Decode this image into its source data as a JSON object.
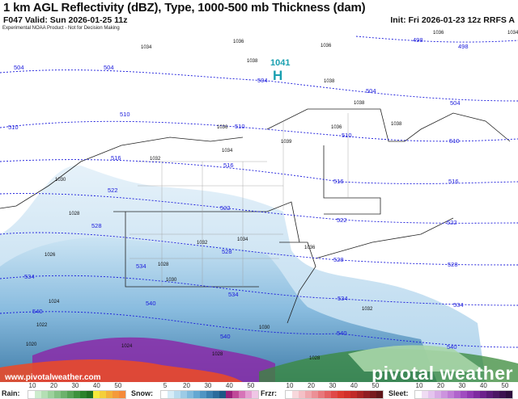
{
  "header": {
    "title": "1 km AGL Reflectivity (dBZ), Type, 1000-500 mb Thickness (dam)",
    "valid": "F047 Valid: Sun 2026-01-25 11z",
    "init": "Init: Fri 2026-01-23 12z RRFS A"
  },
  "map": {
    "disclaimer": "Experimental NOAA Product - Not for Decision Making",
    "website": "www.pivotalweather.com",
    "brand": "pivotal weather",
    "high_center": {
      "value": "1041",
      "symbol": "H"
    },
    "thickness_labels": [
      "498",
      "498",
      "504",
      "504",
      "504",
      "504",
      "504",
      "510",
      "510",
      "510",
      "510",
      "510",
      "516",
      "516",
      "516",
      "516",
      "522",
      "522",
      "522",
      "522",
      "528",
      "528",
      "528",
      "528",
      "534",
      "534",
      "534",
      "534",
      "534",
      "540",
      "540",
      "540",
      "540",
      "540"
    ],
    "pressure_labels": [
      "1034",
      "1036",
      "1038",
      "1036",
      "1038",
      "1038",
      "1036",
      "1036",
      "1039",
      "1038",
      "1034",
      "1032",
      "1030",
      "1028",
      "1032",
      "1034",
      "1026",
      "1028",
      "1030",
      "1036",
      "1024",
      "1022",
      "1030",
      "1032",
      "1036",
      "1034",
      "1028",
      "1020",
      "1024",
      "1028"
    ],
    "colors": {
      "thickness": "#1a1adb",
      "snow": "#5b9bc8",
      "rain": "#3a8a3a",
      "frzr": "#e84a2a",
      "sleet": "#8a2aa8",
      "high": "#1aa0b0"
    }
  },
  "legend": [
    {
      "name": "Rain:",
      "ticks": [
        "10",
        "20",
        "30",
        "40",
        "50"
      ],
      "colors": [
        "#ffffff",
        "#cdeccd",
        "#b4dfb4",
        "#9cd29c",
        "#84c284",
        "#6cb26c",
        "#55a255",
        "#3d923d",
        "#2a822a",
        "#1f701f",
        "#f6ea3a",
        "#f4cf3a",
        "#f3b23a",
        "#f49a3a",
        "#f58a3a"
      ]
    },
    {
      "name": "Snow:",
      "ticks": [
        "5",
        "20",
        "30",
        "40",
        "50"
      ],
      "colors": [
        "#ffffff",
        "#d6ecf7",
        "#b8dbef",
        "#9ccbe6",
        "#80badd",
        "#64a8d2",
        "#4e95c3",
        "#3a80b0",
        "#2a6c9c",
        "#1d5885",
        "#9a1f7a",
        "#c04898",
        "#d674b8",
        "#e59ed2",
        "#f0c6e6"
      ]
    },
    {
      "name": "Frzr:",
      "ticks": [
        "10",
        "20",
        "30",
        "40",
        "50"
      ],
      "colors": [
        "#ffffff",
        "#f8d8dc",
        "#f4c0c6",
        "#f0a8ae",
        "#ec9096",
        "#e8787c",
        "#e46062",
        "#e04848",
        "#dc3a30",
        "#d2302a",
        "#c02a28",
        "#a82424",
        "#901e22",
        "#781a1e",
        "#60161a"
      ]
    },
    {
      "name": "Sleet:",
      "ticks": [
        "10",
        "20",
        "30",
        "40",
        "50"
      ],
      "colors": [
        "#ffffff",
        "#f0dcf4",
        "#e4c4ee",
        "#d8ace6",
        "#cc94de",
        "#c07cd6",
        "#b064cc",
        "#a04cc0",
        "#9038b2",
        "#7e2aa0",
        "#6c208c",
        "#5a1a78",
        "#4a1664",
        "#3c1250",
        "#2e0e3e"
      ]
    }
  ]
}
